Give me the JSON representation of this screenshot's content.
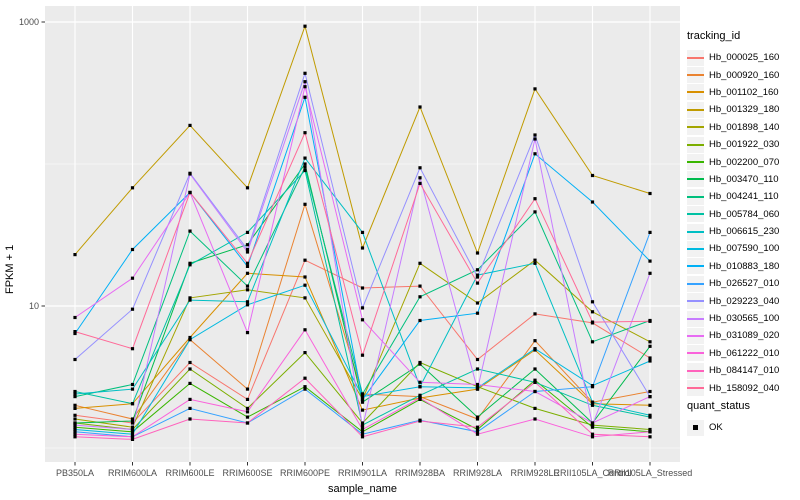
{
  "figure": {
    "bg": "#FFFFFF",
    "panel_bg": "#EBEBEB",
    "grid_color": "#FFFFFF",
    "tick_mark_color": "#333333",
    "tick_label_color": "#4D4D4D",
    "point_color": "#000000"
  },
  "axes": {
    "x_title": "sample_name",
    "y_title": "FPKM + 1"
  },
  "legend": {
    "tracking_title": "tracking_id",
    "quant_title": "quant_status",
    "quant_items": [
      "OK"
    ]
  },
  "chart_data": {
    "type": "line",
    "title": "",
    "xlabel": "sample_name",
    "ylabel": "FPKM + 1",
    "y_scale": "log10",
    "ylim": [
      1,
      1100
    ],
    "y_major_ticks": [
      {
        "value": 10,
        "label": "10"
      },
      {
        "value": 1000,
        "label": "1000"
      }
    ],
    "y_minor_ticks": [
      1,
      100
    ],
    "grid": true,
    "legend_position": "right",
    "legend_title": "tracking_id",
    "quant_status_legend": {
      "title": "quant_status",
      "items": [
        "OK"
      ]
    },
    "point_shape": "filled-square",
    "point_color": "#000000",
    "categories": [
      "PB350LA",
      "RRIM600LA",
      "RRIM600LE",
      "RRIM600SE",
      "RRIM600PE",
      "RRIM901LA",
      "RRIM928BA",
      "RRIM928LA",
      "RRIM928LE",
      "RRII105LA_Control",
      "RRII105LA_Stressed"
    ],
    "series": [
      {
        "name": "Hb_000025_160",
        "color": "#F8766D",
        "values": [
          1.7,
          1.5,
          4.0,
          2.2,
          21,
          13.4,
          13.8,
          4.2,
          8.8,
          7.6,
          4.3
        ]
      },
      {
        "name": "Hb_000920_160",
        "color": "#EA8331",
        "values": [
          2.0,
          1.6,
          5.8,
          2.6,
          52,
          2.4,
          2.3,
          1.6,
          5.7,
          2.1,
          2.5
        ]
      },
      {
        "name": "Hb_001102_160",
        "color": "#D89000",
        "values": [
          1.9,
          2.05,
          6.0,
          17,
          16,
          1.85,
          2.25,
          2.6,
          4.9,
          2.05,
          2.0
        ]
      },
      {
        "name": "Hb_001329_180",
        "color": "#C09B00",
        "values": [
          23,
          68,
          187,
          68,
          934,
          25.6,
          252,
          23.6,
          338,
          83,
          62
        ]
      },
      {
        "name": "Hb_001898_140",
        "color": "#A3A500",
        "values": [
          1.6,
          1.4,
          11.4,
          13,
          11.4,
          2.2,
          20,
          10.5,
          21,
          9.1,
          5.6
        ]
      },
      {
        "name": "Hb_001922_030",
        "color": "#7CAE00",
        "values": [
          1.5,
          1.35,
          3.6,
          1.9,
          4.7,
          1.5,
          4.0,
          2.7,
          1.9,
          1.45,
          1.35
        ]
      },
      {
        "name": "Hb_002200_070",
        "color": "#39B600",
        "values": [
          1.4,
          1.3,
          2.85,
          1.65,
          2.7,
          1.3,
          2.2,
          1.35,
          3.0,
          1.4,
          1.3
        ]
      },
      {
        "name": "Hb_003470_110",
        "color": "#00BB4E",
        "values": [
          1.5,
          1.55,
          20,
          27,
          100,
          2.1,
          3.9,
          1.65,
          3.6,
          1.5,
          5.2
        ]
      },
      {
        "name": "Hb_004241_110",
        "color": "#00BF7D",
        "values": [
          2.3,
          2.8,
          33.7,
          13.8,
          95,
          2.4,
          11.6,
          18,
          46,
          5.6,
          7.9
        ]
      },
      {
        "name": "Hb_005784_060",
        "color": "#00C1A3",
        "values": [
          2.5,
          2.05,
          19.5,
          33,
          90,
          1.45,
          2.35,
          3.6,
          2.9,
          2.0,
          1.65
        ]
      },
      {
        "name": "Hb_006615_230",
        "color": "#00BFC4",
        "values": [
          2.4,
          2.6,
          11,
          10.7,
          110,
          33,
          2.7,
          16.5,
          20,
          2.1,
          1.7
        ]
      },
      {
        "name": "Hb_007590_100",
        "color": "#00BAE0",
        "values": [
          1.35,
          1.25,
          5.8,
          10.2,
          14,
          2.3,
          2.7,
          2.65,
          5.0,
          2.75,
          4.1
        ]
      },
      {
        "name": "Hb_010883_180",
        "color": "#00B0F6",
        "values": [
          6.4,
          25,
          63,
          19,
          295,
          2.2,
          7.9,
          8.9,
          118,
          54,
          20.7
        ]
      },
      {
        "name": "Hb_026527_010",
        "color": "#35A2FF",
        "values": [
          1.3,
          1.2,
          1.9,
          1.5,
          2.6,
          1.25,
          1.57,
          1.3,
          2.5,
          2.7,
          33
        ]
      },
      {
        "name": "Hb_029223_040",
        "color": "#9590FF",
        "values": [
          4.2,
          9.5,
          86,
          25,
          435,
          9.7,
          94,
          16,
          160,
          10.7,
          2.3
        ]
      },
      {
        "name": "Hb_030565_100",
        "color": "#C77CFF",
        "values": [
          1.45,
          1.35,
          85,
          24,
          380,
          1.4,
          80,
          2.6,
          150,
          1.45,
          17
        ]
      },
      {
        "name": "Hb_031089_020",
        "color": "#E76BF3",
        "values": [
          8.3,
          15.7,
          63,
          6.5,
          350,
          8.0,
          2.9,
          2.8,
          2.5,
          1.5,
          2.3
        ]
      },
      {
        "name": "Hb_061222_010",
        "color": "#FA62DB",
        "values": [
          1.25,
          1.2,
          2.2,
          1.8,
          6.8,
          1.35,
          2.25,
          1.25,
          1.6,
          1.2,
          1.3
        ]
      },
      {
        "name": "Hb_084147_010",
        "color": "#FF62BC",
        "values": [
          1.2,
          1.15,
          1.6,
          1.5,
          3.1,
          1.2,
          1.55,
          1.4,
          2.9,
          1.25,
          1.2
        ]
      },
      {
        "name": "Hb_158092_040",
        "color": "#FF6A98",
        "values": [
          6.6,
          5.0,
          63,
          20,
          166,
          4.5,
          73,
          14.5,
          57,
          7.7,
          7.8
        ]
      }
    ]
  }
}
